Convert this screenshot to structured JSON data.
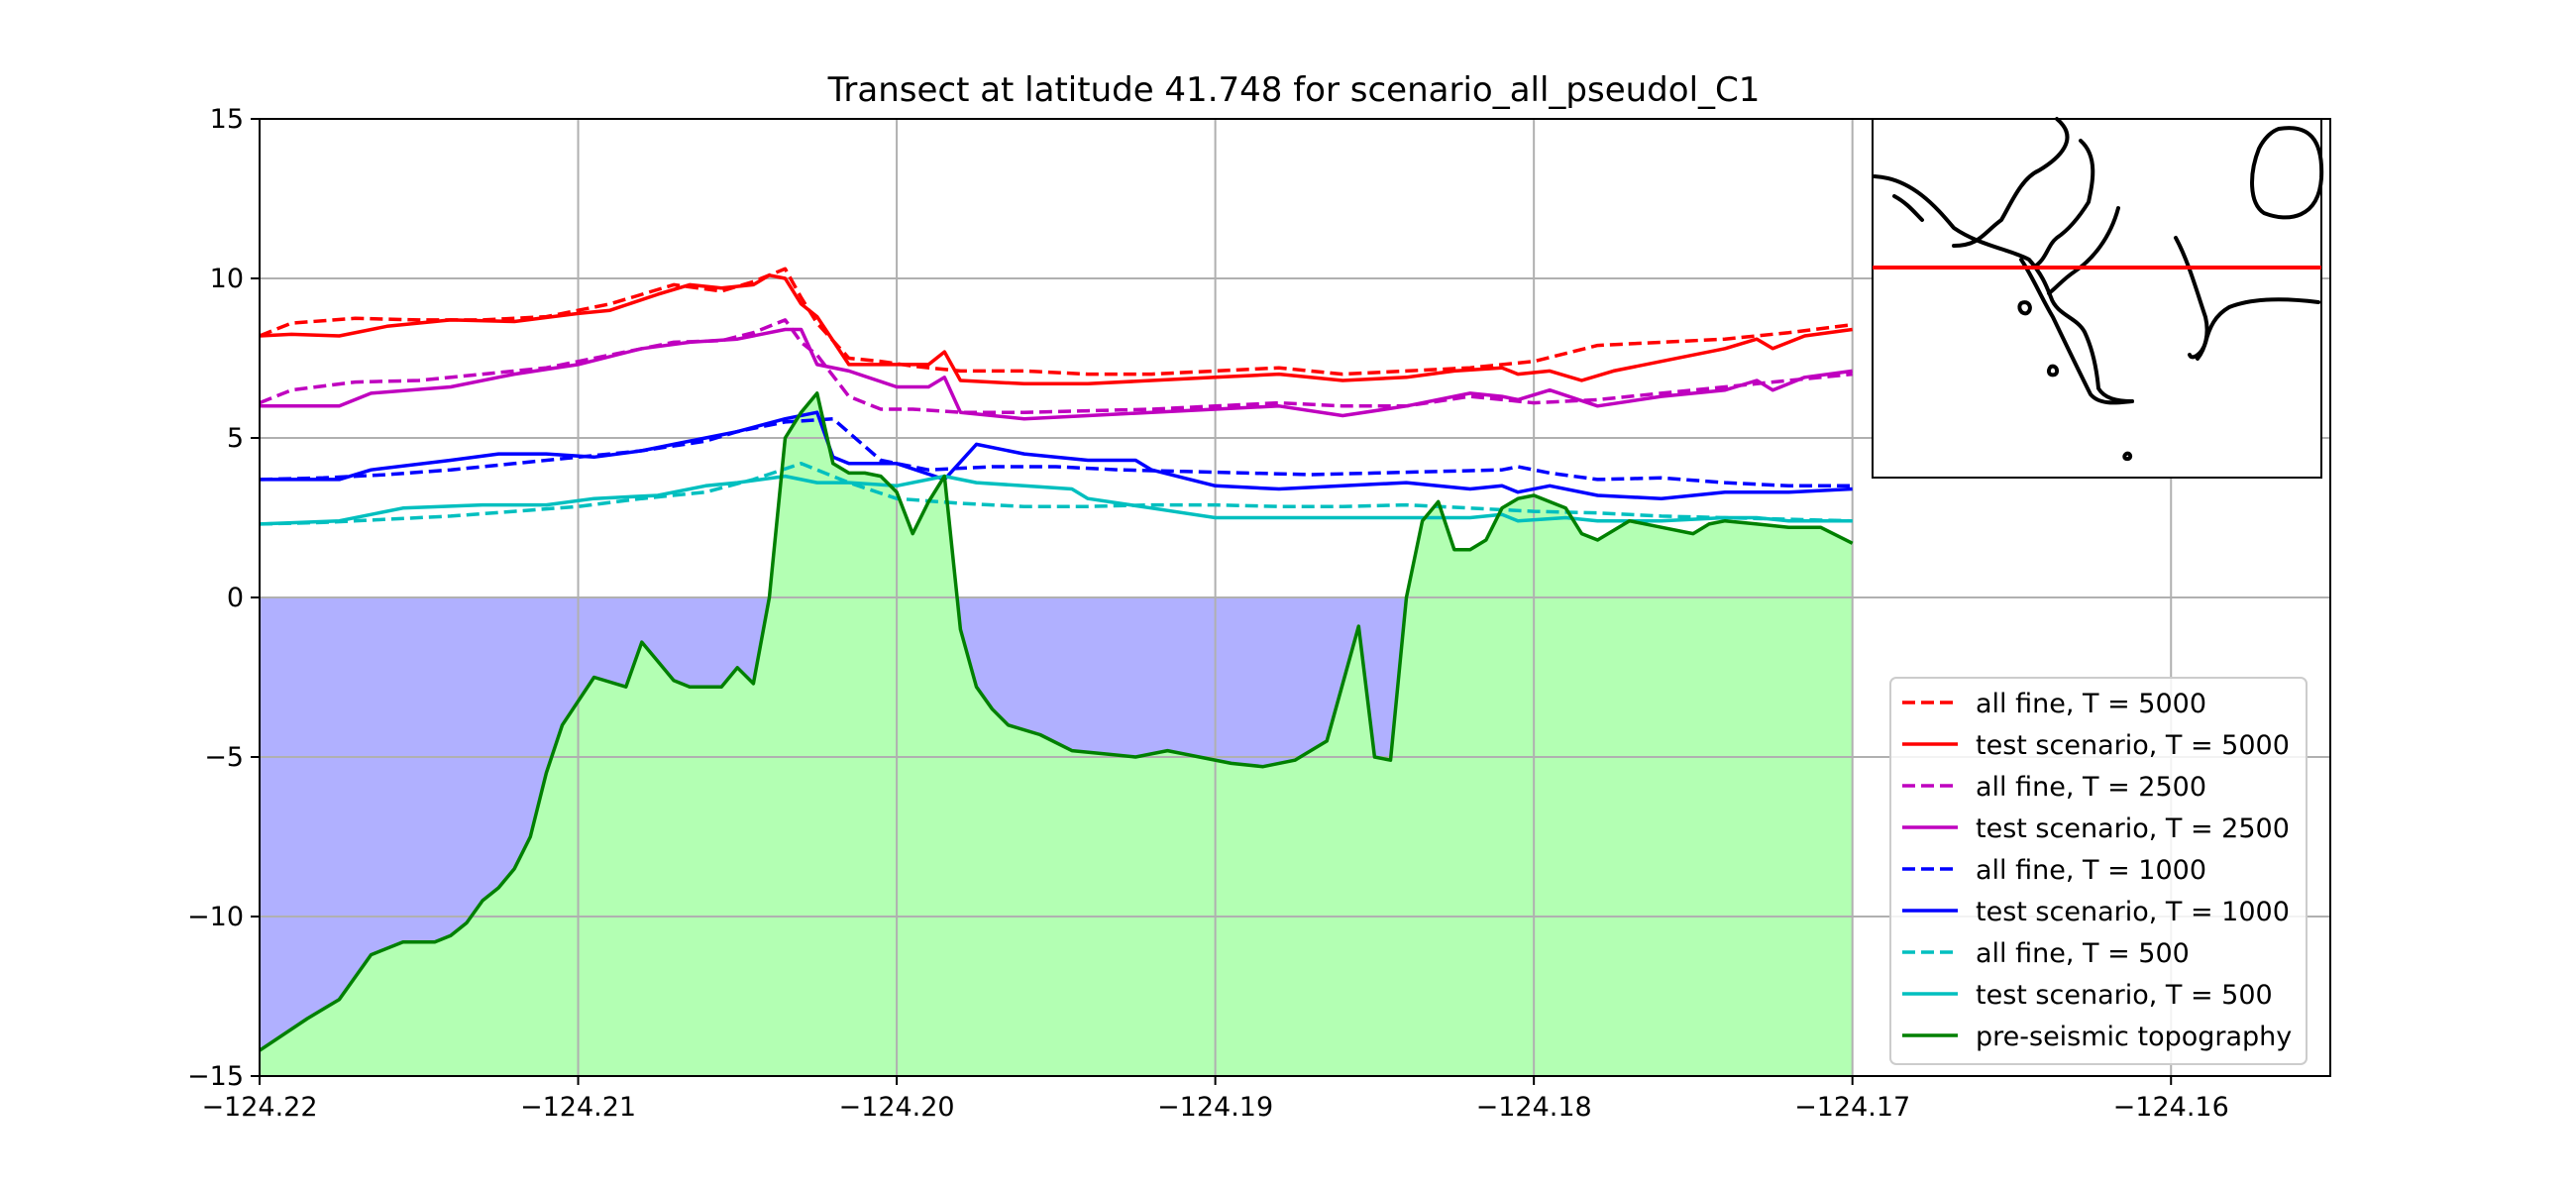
{
  "chart_data": {
    "type": "line",
    "title": "Transect at latitude 41.748 for scenario_all_pseudol_C1",
    "xlabel": "",
    "ylabel": "",
    "xlim": [
      -124.22,
      -124.155
    ],
    "ylim": [
      -15,
      15
    ],
    "x_ticks": [
      -124.22,
      -124.21,
      -124.2,
      -124.19,
      -124.18,
      -124.17,
      -124.16
    ],
    "x_tick_labels": [
      "−124.22",
      "−124.21",
      "−124.20",
      "−124.19",
      "−124.18",
      "−124.17",
      "−124.16"
    ],
    "y_ticks": [
      -15,
      -10,
      -5,
      0,
      5,
      10,
      15
    ],
    "y_tick_labels": [
      "−15",
      "−10",
      "−5",
      "0",
      "5",
      "10",
      "15"
    ],
    "grid": true,
    "legend_position": "lower-right",
    "fills": {
      "water_color": "#b0b0ff",
      "land_color": "#b3ffb3",
      "sea_level": 0
    },
    "series": [
      {
        "name": "all fine, T = 5000",
        "color": "#ff0000",
        "dash": true,
        "x": [
          -124.22,
          -124.219,
          -124.217,
          -124.215,
          -124.213,
          -124.211,
          -124.209,
          -124.207,
          -124.2055,
          -124.2045,
          -124.2035,
          -124.203,
          -124.2025,
          -124.2015,
          -124.2005,
          -124.1995,
          -124.198,
          -124.196,
          -124.194,
          -124.192,
          -124.19,
          -124.188,
          -124.186,
          -124.184,
          -124.182,
          -124.18,
          -124.178,
          -124.176,
          -124.174,
          -124.172,
          -124.17
        ],
        "y": [
          8.2,
          8.6,
          8.75,
          8.7,
          8.7,
          8.8,
          9.2,
          9.8,
          9.6,
          9.9,
          10.3,
          9.4,
          8.6,
          7.5,
          7.4,
          7.25,
          7.1,
          7.1,
          7.0,
          7.0,
          7.1,
          7.2,
          7.0,
          7.1,
          7.2,
          7.4,
          7.9,
          8.0,
          8.1,
          8.3,
          8.55
        ]
      },
      {
        "name": "test scenario, T = 5000",
        "color": "#ff0000",
        "dash": false,
        "x": [
          -124.22,
          -124.219,
          -124.2175,
          -124.216,
          -124.214,
          -124.212,
          -124.21,
          -124.209,
          -124.2075,
          -124.2065,
          -124.2055,
          -124.2045,
          -124.204,
          -124.2035,
          -124.203,
          -124.2025,
          -124.2015,
          -124.2005,
          -124.199,
          -124.1985,
          -124.198,
          -124.196,
          -124.194,
          -124.192,
          -124.19,
          -124.188,
          -124.186,
          -124.184,
          -124.1825,
          -124.181,
          -124.1805,
          -124.1795,
          -124.1785,
          -124.1775,
          -124.176,
          -124.174,
          -124.173,
          -124.1725,
          -124.1715,
          -124.17
        ],
        "y": [
          8.2,
          8.25,
          8.2,
          8.5,
          8.7,
          8.65,
          8.9,
          9.0,
          9.5,
          9.8,
          9.7,
          9.8,
          10.1,
          10.0,
          9.2,
          8.8,
          7.3,
          7.3,
          7.3,
          7.7,
          6.8,
          6.7,
          6.7,
          6.8,
          6.9,
          7.0,
          6.8,
          6.9,
          7.1,
          7.2,
          7.0,
          7.1,
          6.8,
          7.1,
          7.4,
          7.8,
          8.1,
          7.8,
          8.2,
          8.4
        ]
      },
      {
        "name": "all fine, T = 2500",
        "color": "#bf00bf",
        "dash": true,
        "x": [
          -124.22,
          -124.219,
          -124.217,
          -124.215,
          -124.213,
          -124.211,
          -124.209,
          -124.207,
          -124.2055,
          -124.2045,
          -124.2035,
          -124.203,
          -124.2025,
          -124.2015,
          -124.2005,
          -124.1995,
          -124.198,
          -124.196,
          -124.194,
          -124.192,
          -124.19,
          -124.188,
          -124.186,
          -124.184,
          -124.182,
          -124.18,
          -124.178,
          -124.176,
          -124.174,
          -124.172,
          -124.17
        ],
        "y": [
          6.1,
          6.5,
          6.75,
          6.8,
          7.0,
          7.2,
          7.6,
          8.0,
          8.05,
          8.3,
          8.7,
          8.0,
          7.6,
          6.3,
          5.9,
          5.9,
          5.8,
          5.8,
          5.85,
          5.9,
          6.0,
          6.1,
          6.0,
          6.0,
          6.3,
          6.1,
          6.2,
          6.4,
          6.6,
          6.8,
          7.0
        ]
      },
      {
        "name": "test scenario, T = 2500",
        "color": "#bf00bf",
        "dash": false,
        "x": [
          -124.22,
          -124.2175,
          -124.2165,
          -124.214,
          -124.212,
          -124.21,
          -124.208,
          -124.2065,
          -124.205,
          -124.2035,
          -124.203,
          -124.2025,
          -124.2015,
          -124.2,
          -124.199,
          -124.1985,
          -124.198,
          -124.196,
          -124.194,
          -124.192,
          -124.19,
          -124.188,
          -124.186,
          -124.184,
          -124.182,
          -124.181,
          -124.1805,
          -124.1795,
          -124.178,
          -124.176,
          -124.174,
          -124.173,
          -124.1725,
          -124.1715,
          -124.17
        ],
        "y": [
          6.0,
          6.0,
          6.4,
          6.6,
          7.0,
          7.3,
          7.8,
          8.0,
          8.1,
          8.4,
          8.4,
          7.3,
          7.1,
          6.6,
          6.6,
          6.9,
          5.8,
          5.6,
          5.7,
          5.8,
          5.9,
          6.0,
          5.7,
          6.0,
          6.4,
          6.3,
          6.2,
          6.5,
          6.0,
          6.3,
          6.5,
          6.8,
          6.5,
          6.9,
          7.1
        ]
      },
      {
        "name": "all fine, T = 1000",
        "color": "#0000ff",
        "dash": true,
        "x": [
          -124.22,
          -124.218,
          -124.216,
          -124.214,
          -124.212,
          -124.21,
          -124.208,
          -124.206,
          -124.205,
          -124.2035,
          -124.202,
          -124.2005,
          -124.199,
          -124.197,
          -124.195,
          -124.193,
          -124.191,
          -124.189,
          -124.187,
          -124.185,
          -124.183,
          -124.181,
          -124.1805,
          -124.1795,
          -124.178,
          -124.176,
          -124.174,
          -124.172,
          -124.17
        ],
        "y": [
          3.7,
          3.75,
          3.85,
          4.0,
          4.2,
          4.4,
          4.6,
          4.9,
          5.2,
          5.5,
          5.6,
          4.3,
          4.0,
          4.1,
          4.1,
          4.0,
          3.95,
          3.9,
          3.85,
          3.9,
          3.95,
          4.0,
          4.1,
          3.9,
          3.7,
          3.75,
          3.6,
          3.5,
          3.5
        ]
      },
      {
        "name": "test scenario, T = 1000",
        "color": "#0000ff",
        "dash": false,
        "x": [
          -124.22,
          -124.2175,
          -124.2165,
          -124.214,
          -124.2125,
          -124.211,
          -124.2095,
          -124.208,
          -124.207,
          -124.205,
          -124.2035,
          -124.2025,
          -124.202,
          -124.2015,
          -124.2,
          -124.1985,
          -124.1975,
          -124.196,
          -124.194,
          -124.1925,
          -124.192,
          -124.19,
          -124.188,
          -124.186,
          -124.184,
          -124.182,
          -124.181,
          -124.1805,
          -124.1795,
          -124.178,
          -124.176,
          -124.174,
          -124.172,
          -124.17
        ],
        "y": [
          3.7,
          3.7,
          4.0,
          4.3,
          4.5,
          4.5,
          4.4,
          4.6,
          4.8,
          5.2,
          5.6,
          5.8,
          4.4,
          4.2,
          4.2,
          3.7,
          4.8,
          4.5,
          4.3,
          4.3,
          4.0,
          3.5,
          3.4,
          3.5,
          3.6,
          3.4,
          3.5,
          3.3,
          3.5,
          3.2,
          3.1,
          3.3,
          3.3,
          3.4
        ]
      },
      {
        "name": "all fine, T =  500",
        "color": "#00bfbf",
        "dash": true,
        "x": [
          -124.22,
          -124.218,
          -124.216,
          -124.214,
          -124.212,
          -124.21,
          -124.208,
          -124.206,
          -124.2045,
          -124.203,
          -124.2015,
          -124.2,
          -124.198,
          -124.196,
          -124.194,
          -124.192,
          -124.19,
          -124.188,
          -124.186,
          -124.184,
          -124.182,
          -124.18,
          -124.178,
          -124.176,
          -124.174,
          -124.172,
          -124.17
        ],
        "y": [
          2.3,
          2.35,
          2.45,
          2.55,
          2.7,
          2.85,
          3.1,
          3.3,
          3.7,
          4.2,
          3.6,
          3.1,
          2.95,
          2.85,
          2.85,
          2.9,
          2.9,
          2.85,
          2.85,
          2.9,
          2.8,
          2.7,
          2.65,
          2.55,
          2.5,
          2.45,
          2.4
        ]
      },
      {
        "name": "test scenario, T =  500",
        "color": "#00bfbf",
        "dash": false,
        "x": [
          -124.22,
          -124.2175,
          -124.2155,
          -124.213,
          -124.211,
          -124.2095,
          -124.2075,
          -124.206,
          -124.205,
          -124.2035,
          -124.2025,
          -124.2015,
          -124.2,
          -124.1985,
          -124.1975,
          -124.196,
          -124.1945,
          -124.194,
          -124.192,
          -124.19,
          -124.188,
          -124.186,
          -124.184,
          -124.182,
          -124.181,
          -124.1805,
          -124.179,
          -124.178,
          -124.176,
          -124.174,
          -124.173,
          -124.172,
          -124.17
        ],
        "y": [
          2.3,
          2.4,
          2.8,
          2.9,
          2.9,
          3.1,
          3.2,
          3.5,
          3.6,
          3.8,
          3.6,
          3.6,
          3.5,
          3.8,
          3.6,
          3.5,
          3.4,
          3.1,
          2.8,
          2.5,
          2.5,
          2.5,
          2.5,
          2.5,
          2.6,
          2.4,
          2.5,
          2.4,
          2.4,
          2.5,
          2.5,
          2.4,
          2.4
        ]
      },
      {
        "name": "pre-seismic topography",
        "color": "#008000",
        "dash": false,
        "fill": true,
        "x": [
          -124.22,
          -124.2185,
          -124.2175,
          -124.2165,
          -124.2155,
          -124.2145,
          -124.214,
          -124.2135,
          -124.213,
          -124.2125,
          -124.212,
          -124.2115,
          -124.211,
          -124.2105,
          -124.2095,
          -124.2085,
          -124.208,
          -124.2075,
          -124.207,
          -124.2065,
          -124.2055,
          -124.205,
          -124.2045,
          -124.204,
          -124.2035,
          -124.203,
          -124.2025,
          -124.202,
          -124.2015,
          -124.201,
          -124.2005,
          -124.2,
          -124.1995,
          -124.199,
          -124.1985,
          -124.198,
          -124.1975,
          -124.197,
          -124.1965,
          -124.1955,
          -124.1945,
          -124.1935,
          -124.1925,
          -124.1915,
          -124.1905,
          -124.1895,
          -124.1885,
          -124.1875,
          -124.1865,
          -124.1855,
          -124.185,
          -124.1845,
          -124.184,
          -124.1835,
          -124.183,
          -124.1825,
          -124.182,
          -124.1815,
          -124.181,
          -124.1805,
          -124.18,
          -124.1795,
          -124.179,
          -124.1785,
          -124.178,
          -124.177,
          -124.176,
          -124.175,
          -124.1745,
          -124.174,
          -124.173,
          -124.172,
          -124.171,
          -124.17
        ],
        "y": [
          -14.2,
          -13.2,
          -12.6,
          -11.2,
          -10.8,
          -10.8,
          -10.6,
          -10.2,
          -9.5,
          -9.1,
          -8.5,
          -7.5,
          -5.5,
          -4.0,
          -2.5,
          -2.8,
          -1.4,
          -2.0,
          -2.6,
          -2.8,
          -2.8,
          -2.2,
          -2.7,
          0.0,
          5.0,
          5.8,
          6.4,
          4.2,
          3.9,
          3.9,
          3.8,
          3.3,
          2.0,
          3.0,
          3.8,
          -1.0,
          -2.8,
          -3.5,
          -4.0,
          -4.3,
          -4.8,
          -4.9,
          -5.0,
          -4.8,
          -5.0,
          -5.2,
          -5.3,
          -5.1,
          -4.5,
          -0.9,
          -5.0,
          -5.1,
          0.0,
          2.4,
          3.0,
          1.5,
          1.5,
          1.8,
          2.8,
          3.1,
          3.2,
          3.0,
          2.8,
          2.0,
          1.8,
          2.4,
          2.2,
          2.0,
          2.3,
          2.4,
          2.3,
          2.2,
          2.2,
          1.7
        ]
      }
    ],
    "inset_map": {
      "transect_color": "#ff0000",
      "coastline_color": "#000000"
    }
  }
}
